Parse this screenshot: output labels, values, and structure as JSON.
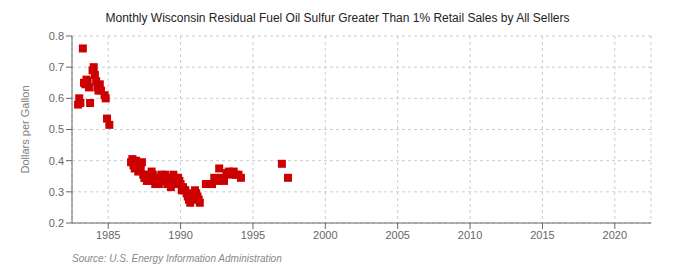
{
  "chart_data": {
    "type": "scatter",
    "title": "Monthly Wisconsin Residual Fuel Oil Sulfur Greater Than 1% Retail Sales by All Sellers",
    "ylabel": "Dollars per Gallon",
    "annotations": [
      "Source: U.S. Energy Information Administration"
    ],
    "color": "#cc0000",
    "marker": "square",
    "grid": true,
    "xlim": [
      1982.5,
      2022.5
    ],
    "ylim": [
      0.2,
      0.8
    ],
    "xticks": [
      1985,
      1990,
      1995,
      2000,
      2005,
      2010,
      2015,
      2020
    ],
    "yticks": [
      0.2,
      0.3,
      0.4,
      0.5,
      0.6,
      0.7,
      0.8
    ],
    "x": [
      1982.92,
      1983.0,
      1983.08,
      1983.25,
      1983.33,
      1983.42,
      1983.5,
      1983.58,
      1983.67,
      1983.75,
      1983.92,
      1984.0,
      1984.08,
      1984.17,
      1984.25,
      1984.33,
      1984.42,
      1984.5,
      1984.75,
      1984.83,
      1984.92,
      1985.08,
      1986.58,
      1986.67,
      1986.75,
      1986.83,
      1986.92,
      1987.0,
      1987.08,
      1987.17,
      1987.25,
      1987.33,
      1987.42,
      1987.5,
      1987.58,
      1987.67,
      1987.75,
      1987.83,
      1987.92,
      1988.0,
      1988.08,
      1988.17,
      1988.25,
      1988.33,
      1988.42,
      1988.5,
      1988.58,
      1988.67,
      1988.75,
      1988.83,
      1988.92,
      1989.0,
      1989.08,
      1989.17,
      1989.25,
      1989.33,
      1989.42,
      1989.5,
      1989.58,
      1989.67,
      1989.75,
      1989.83,
      1989.92,
      1990.0,
      1990.08,
      1990.17,
      1990.25,
      1990.33,
      1990.42,
      1990.5,
      1990.58,
      1990.67,
      1990.75,
      1990.83,
      1990.92,
      1991.0,
      1991.08,
      1991.17,
      1991.25,
      1991.33,
      1991.75,
      1992.17,
      1992.33,
      1992.5,
      1992.67,
      1992.83,
      1993.0,
      1993.17,
      1993.33,
      1993.5,
      1993.67,
      1993.83,
      1994.0,
      1994.17,
      1997.0,
      1997.42
    ],
    "values": [
      0.58,
      0.6,
      0.585,
      0.76,
      0.65,
      0.645,
      0.66,
      0.655,
      0.635,
      0.585,
      0.69,
      0.7,
      0.675,
      0.655,
      0.635,
      0.625,
      0.645,
      0.625,
      0.61,
      0.6,
      0.535,
      0.515,
      0.395,
      0.405,
      0.385,
      0.375,
      0.4,
      0.385,
      0.365,
      0.385,
      0.375,
      0.395,
      0.355,
      0.345,
      0.345,
      0.335,
      0.355,
      0.345,
      0.335,
      0.365,
      0.355,
      0.335,
      0.325,
      0.345,
      0.335,
      0.325,
      0.345,
      0.355,
      0.345,
      0.335,
      0.355,
      0.345,
      0.325,
      0.335,
      0.325,
      0.315,
      0.335,
      0.355,
      0.345,
      0.335,
      0.325,
      0.345,
      0.335,
      0.325,
      0.305,
      0.315,
      0.305,
      0.305,
      0.295,
      0.285,
      0.275,
      0.265,
      0.275,
      0.285,
      0.295,
      0.305,
      0.295,
      0.285,
      0.275,
      0.265,
      0.325,
      0.325,
      0.345,
      0.335,
      0.375,
      0.345,
      0.335,
      0.36,
      0.365,
      0.355,
      0.365,
      0.355,
      0.355,
      0.345,
      0.39,
      0.345
    ]
  }
}
